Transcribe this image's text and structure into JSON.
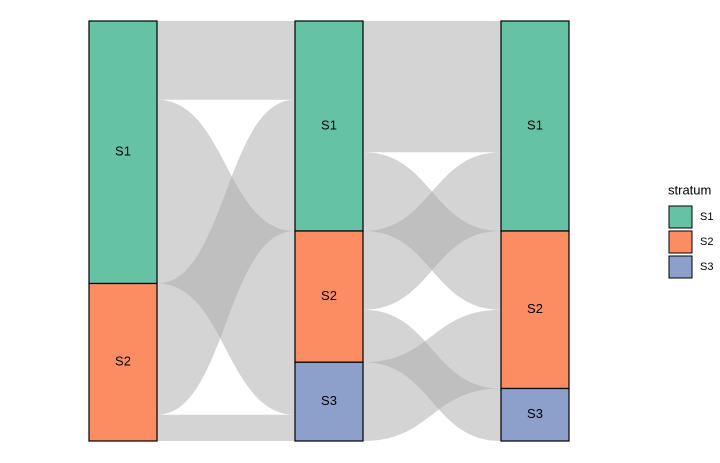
{
  "chart_data": {
    "type": "alluvial",
    "strata": [
      {
        "name": "S1",
        "color": "#66c2a5"
      },
      {
        "name": "S2",
        "color": "#fc8d62"
      },
      {
        "name": "S3",
        "color": "#8da0cb"
      }
    ],
    "axes": [
      {
        "strata": [
          {
            "label": "S1",
            "value": 50
          },
          {
            "label": "S2",
            "value": 30
          }
        ]
      },
      {
        "strata": [
          {
            "label": "S1",
            "value": 40
          },
          {
            "label": "S2",
            "value": 25
          },
          {
            "label": "S3",
            "value": 15
          }
        ]
      },
      {
        "strata": [
          {
            "label": "S1",
            "value": 40
          },
          {
            "label": "S2",
            "value": 30
          },
          {
            "label": "S3",
            "value": 10
          }
        ]
      }
    ],
    "flows": [
      {
        "axis": 0,
        "from": 0,
        "to": 0,
        "value": 15
      },
      {
        "axis": 0,
        "from": 0,
        "to": 1,
        "value": 25
      },
      {
        "axis": 0,
        "from": 0,
        "to": 2,
        "value": 10
      },
      {
        "axis": 0,
        "from": 1,
        "to": 0,
        "value": 25
      },
      {
        "axis": 0,
        "from": 1,
        "to": 2,
        "value": 5
      },
      {
        "axis": 1,
        "from": 0,
        "to": 0,
        "value": 25
      },
      {
        "axis": 1,
        "from": 0,
        "to": 1,
        "value": 15
      },
      {
        "axis": 1,
        "from": 1,
        "to": 0,
        "value": 15
      },
      {
        "axis": 1,
        "from": 1,
        "to": 2,
        "value": 10
      },
      {
        "axis": 1,
        "from": 2,
        "to": 1,
        "value": 15
      }
    ],
    "flow_color": "#a9a9a9",
    "legend": {
      "title": "stratum",
      "position": "right"
    }
  }
}
